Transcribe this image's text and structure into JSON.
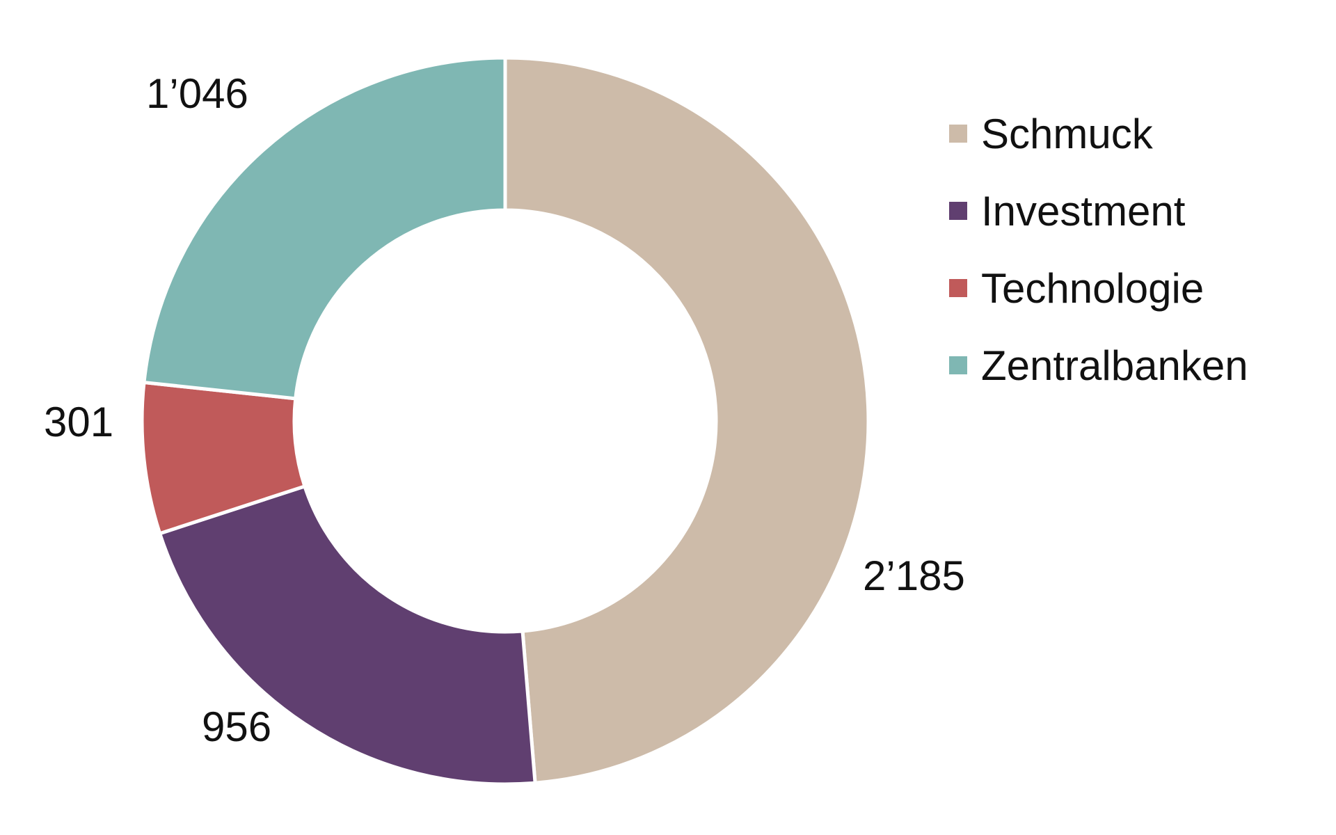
{
  "chart_data": {
    "type": "pie",
    "title": "",
    "donut": true,
    "categories": [
      "Schmuck",
      "Investment",
      "Technologie",
      "Zentralbanken"
    ],
    "values": [
      2185,
      956,
      301,
      1046
    ],
    "value_labels": [
      "2’185",
      "956",
      "301",
      "1’046"
    ],
    "colors": [
      "#CDBBA9",
      "#603F70",
      "#C05A5A",
      "#7FB7B3"
    ],
    "legend": {
      "position": "right",
      "entries": [
        "Schmuck",
        "Investment",
        "Technologie",
        "Zentralbanken"
      ]
    },
    "start": "top",
    "direction": "clockwise"
  }
}
